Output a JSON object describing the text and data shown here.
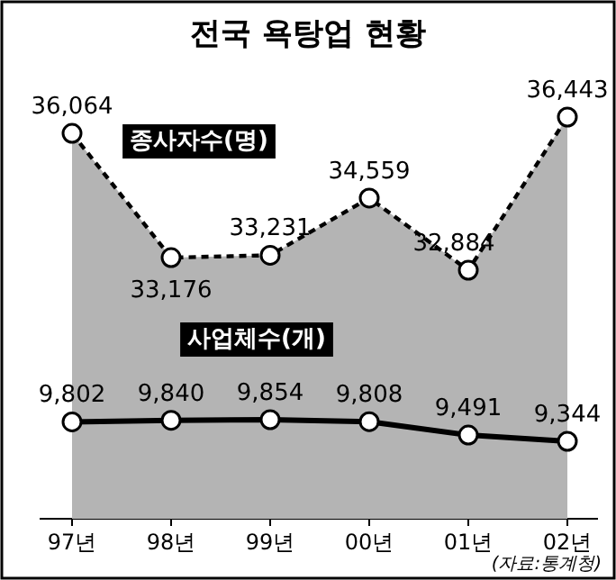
{
  "chart_data": {
    "type": "line",
    "title": "전국 욕탕업 현황",
    "categories": [
      "97년",
      "98년",
      "99년",
      "00년",
      "01년",
      "02년"
    ],
    "series": [
      {
        "name": "종사자수(명)",
        "type": "area",
        "color": "#b4b4b4",
        "line_style": "dashed",
        "values": [
          36064,
          33176,
          33231,
          34559,
          32884,
          36443
        ],
        "value_labels": [
          "36,064",
          "33,176",
          "33,231",
          "34,559",
          "32,884",
          "36,443"
        ]
      },
      {
        "name": "사업체수(개)",
        "type": "line",
        "axis": "y2",
        "color": "#000000",
        "line_style": "solid",
        "values": [
          9802,
          9840,
          9854,
          9808,
          9491,
          9344
        ],
        "value_labels": [
          "9,802",
          "9,840",
          "9,854",
          "9,808",
          "9,491",
          "9,344"
        ]
      }
    ],
    "marker": "circle",
    "tick_labels": "x",
    "annotations": [
      "(자료:통계청)"
    ]
  }
}
